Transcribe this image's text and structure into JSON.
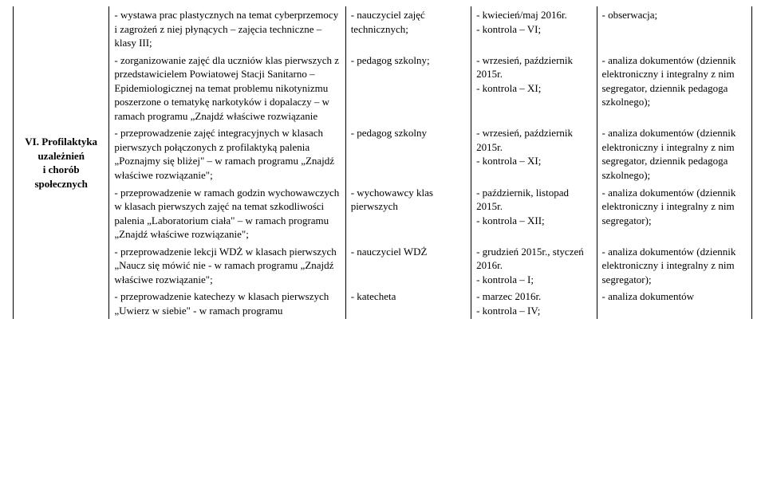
{
  "col1": {
    "heading": "VI. Profilaktyka\nuzależnień\ni chorób\nspołecznych"
  },
  "rows": [
    {
      "c2": "- wystawa prac plastycznych na temat cyberprzemocy i zagrożeń z niej płynących – zajęcia techniczne – klasy III;",
      "c3": "- nauczyciel zajęć technicznych;",
      "c4": "- kwiecień/maj 2016r.\n- kontrola – VI;",
      "c5": "- obserwacja;"
    },
    {
      "c2": "- zorganizowanie zajęć dla uczniów klas pierwszych z przedstawicielem Powiatowej Stacji Sanitarno – Epidemiologicznej na temat problemu nikotynizmu poszerzone o tematykę narkotyków i dopalaczy – w ramach programu „Znajdź właściwe rozwiązanie",
      "c3": "- pedagog szkolny;",
      "c4": "- wrzesień, październik 2015r.\n- kontrola – XI;",
      "c5": "- analiza dokumentów (dziennik elektroniczny i integralny z nim segregator, dziennik pedagoga szkolnego);"
    },
    {
      "c2": "- przeprowadzenie zajęć integracyjnych w klasach pierwszych połączonych z profilaktyką palenia „Poznajmy się bliżej\" – w ramach programu „Znajdź właściwe rozwiązanie\";",
      "c3": "- pedagog szkolny",
      "c4": "- wrzesień, październik 2015r.\n- kontrola – XI;",
      "c5": "- analiza dokumentów (dziennik elektroniczny i integralny z nim segregator, dziennik pedagoga szkolnego);"
    },
    {
      "c2": "- przeprowadzenie w ramach godzin wychowawczych w klasach pierwszych zajęć na temat szkodliwości palenia „Laboratorium ciała\" – w ramach programu „Znajdź właściwe rozwiązanie\";",
      "c3": "- wychowawcy klas pierwszych",
      "c4": "- październik, listopad 2015r.\n- kontrola – XII;",
      "c5": "- analiza dokumentów (dziennik elektroniczny i integralny z nim segregator);"
    },
    {
      "c2": "- przeprowadzenie lekcji WDŻ w klasach pierwszych  „Naucz się mówić nie - w ramach programu „Znajdź właściwe rozwiązanie\";",
      "c3": "- nauczyciel WDŻ",
      "c4": "- grudzień 2015r., styczeń 2016r.\n- kontrola – I;",
      "c5": "- analiza dokumentów (dziennik elektroniczny i integralny z nim segregator);"
    },
    {
      "c2": "- przeprowadzenie katechezy w klasach pierwszych „Uwierz w siebie\" - w ramach programu",
      "c3": "- katecheta",
      "c4": "- marzec 2016r.\n- kontrola – IV;",
      "c5": "- analiza dokumentów"
    }
  ]
}
